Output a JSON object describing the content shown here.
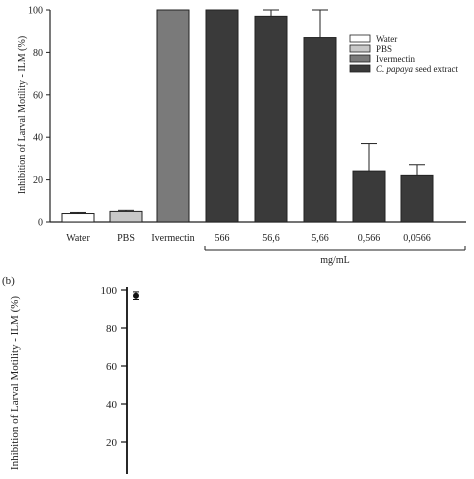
{
  "chart_data": [
    {
      "type": "bar",
      "ylabel": "Inhibition of Larval Motility - ILM (%)",
      "ylim": [
        0,
        100
      ],
      "yticks": [
        0,
        20,
        40,
        60,
        80,
        100
      ],
      "categories": [
        "Water",
        "PBS",
        "Ivermectin",
        "566",
        "56,6",
        "5,66",
        "0,566",
        "0,0566"
      ],
      "values": [
        4,
        5,
        100,
        100,
        97,
        87,
        24,
        22
      ],
      "errors": [
        0.5,
        0.5,
        0,
        0,
        3,
        13,
        13,
        5
      ],
      "bar_series": [
        0,
        1,
        2,
        3,
        3,
        3,
        3,
        3
      ],
      "group_label": "mg/mL",
      "legend_position": "top-right",
      "legend": [
        {
          "label": "Water",
          "color": "#ffffff"
        },
        {
          "label": "PBS",
          "color": "#c8c8c8"
        },
        {
          "label": "Ivermectin",
          "color": "#7a7a7a"
        },
        {
          "label_italic": "C. papaya",
          "label_rest": " seed extract",
          "color": "#3a3a3a"
        }
      ]
    },
    {
      "type": "scatter",
      "panel_label": "(b)",
      "ylabel": "Inhibition of Larval Motility - ILM (%)",
      "ylim_visible": [
        20,
        100
      ],
      "yticks": [
        20,
        40,
        60,
        80,
        100
      ],
      "points": [
        {
          "y": 97,
          "err": 2
        }
      ]
    }
  ]
}
